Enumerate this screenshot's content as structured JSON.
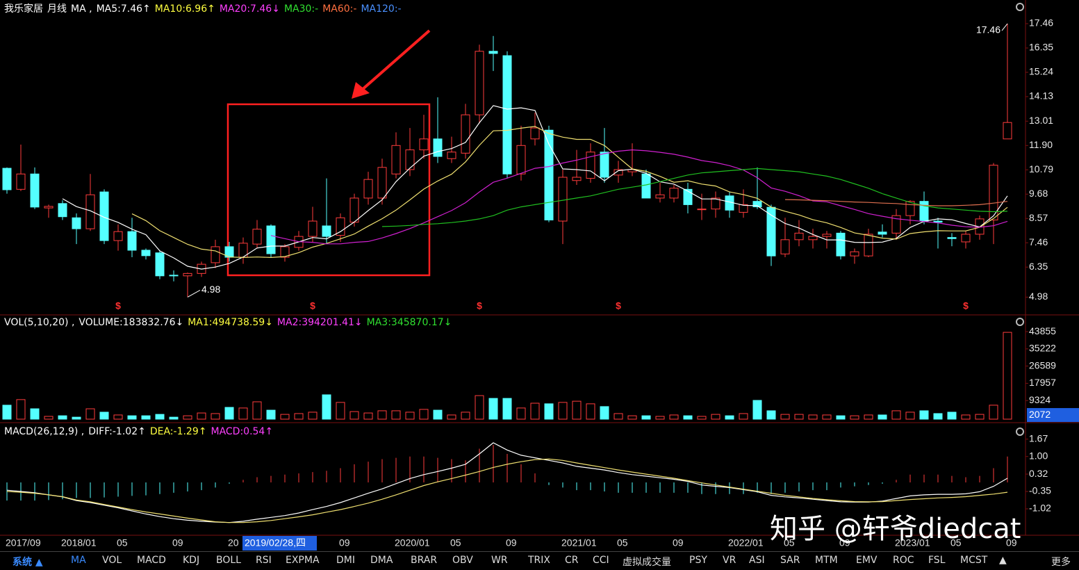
{
  "chart_data": [
    {
      "type": "candlestick",
      "title": "我乐家居",
      "period": "月线",
      "indicator": "MA ,",
      "legend": [
        {
          "text": "MA5:7.46↑",
          "color": "#ffffff"
        },
        {
          "text": "MA10:6.96↑",
          "color": "#ffff40"
        },
        {
          "text": "MA20:7.46↓",
          "color": "#ff40ff"
        },
        {
          "text": "MA30:-",
          "color": "#30e030"
        },
        {
          "text": "MA60:-",
          "color": "#ff7040"
        },
        {
          "text": "MA120:-",
          "color": "#4a90ff"
        }
      ],
      "open": [
        10.86,
        9.9,
        10.6,
        9.05,
        9.25,
        8.6,
        8.1,
        9.78,
        7.56,
        7.97,
        7.12,
        7.0,
        5.98,
        5.95,
        6.06,
        6.55,
        7.28,
        6.8,
        7.4,
        8.23,
        6.8,
        7.25,
        7.75,
        8.23,
        7.8,
        8.4,
        9.5,
        9.5,
        10.6,
        10.8,
        11.7,
        12.2,
        11.3,
        11.55,
        13.3,
        16.2,
        16.0,
        10.6,
        12.2,
        12.6,
        8.45,
        10.3,
        10.4,
        11.6,
        10.55,
        10.7,
        10.6,
        9.5,
        9.5,
        9.9,
        9.0,
        9.0,
        9.6,
        8.85,
        9.35,
        9.08,
        6.95,
        7.6,
        7.6,
        7.75,
        7.9,
        6.86,
        6.86,
        7.95,
        7.9,
        8.7,
        9.35,
        8.45,
        7.7,
        7.5,
        7.85,
        8.5,
        12.2
      ],
      "high": [
        10.9,
        11.94,
        10.9,
        9.2,
        9.4,
        8.8,
        10.6,
        9.9,
        8.3,
        8.6,
        7.2,
        7.1,
        6.2,
        6.1,
        6.6,
        7.6,
        7.5,
        7.7,
        8.5,
        8.3,
        7.4,
        8.0,
        9.1,
        10.4,
        8.8,
        9.7,
        10.7,
        11.3,
        12.5,
        12.7,
        13.3,
        14.1,
        12.3,
        13.8,
        16.5,
        16.9,
        16.2,
        12.8,
        13.4,
        12.8,
        10.8,
        11.7,
        12.0,
        12.7,
        11.2,
        12.0,
        10.8,
        10.2,
        10.1,
        10.2,
        9.7,
        9.8,
        9.8,
        9.9,
        10.9,
        9.2,
        8.6,
        8.5,
        8.1,
        8.0,
        8.0,
        7.2,
        8.1,
        8.3,
        9.0,
        9.4,
        9.8,
        8.6,
        7.9,
        8.0,
        8.7,
        11.1,
        17.46
      ],
      "low": [
        9.7,
        9.82,
        9.0,
        8.6,
        8.5,
        7.4,
        8.0,
        7.4,
        7.1,
        6.8,
        6.7,
        5.8,
        5.7,
        4.98,
        5.9,
        6.3,
        6.6,
        6.5,
        7.2,
        6.8,
        6.6,
        7.1,
        7.5,
        7.4,
        7.5,
        8.2,
        9.2,
        9.2,
        10.4,
        10.5,
        11.3,
        11.1,
        11.1,
        11.3,
        12.9,
        15.3,
        10.4,
        10.3,
        11.9,
        8.4,
        7.4,
        10.1,
        10.2,
        10.2,
        10.2,
        10.5,
        9.5,
        9.3,
        9.3,
        8.8,
        8.5,
        8.6,
        8.6,
        8.6,
        9.0,
        6.4,
        6.8,
        7.3,
        7.2,
        7.2,
        6.7,
        6.5,
        6.8,
        7.7,
        7.6,
        8.3,
        8.3,
        7.2,
        7.3,
        7.2,
        7.6,
        7.4,
        12.2
      ],
      "close": [
        9.88,
        10.6,
        9.09,
        9.12,
        8.65,
        8.1,
        9.65,
        7.56,
        7.97,
        7.12,
        6.87,
        5.95,
        5.96,
        6.06,
        6.48,
        7.28,
        6.8,
        7.44,
        8.08,
        6.96,
        7.28,
        7.75,
        8.45,
        7.75,
        8.6,
        9.5,
        10.35,
        10.9,
        11.9,
        11.7,
        12.2,
        11.4,
        11.6,
        13.3,
        16.2,
        16.1,
        10.6,
        11.9,
        12.7,
        8.5,
        10.45,
        10.45,
        11.6,
        10.45,
        10.8,
        10.8,
        9.5,
        9.65,
        9.95,
        9.2,
        9.0,
        9.5,
        8.95,
        9.2,
        9.1,
        6.86,
        7.6,
        7.9,
        7.75,
        7.85,
        6.86,
        7.05,
        7.85,
        7.85,
        8.7,
        9.35,
        8.45,
        8.4,
        7.65,
        7.85,
        8.55,
        11.0,
        12.95
      ],
      "series": [
        {
          "color": "#ffffff",
          "values": [
            null,
            null,
            null,
            null,
            9.47,
            9.11,
            8.92,
            8.62,
            8.39,
            8.08,
            7.83,
            7.09,
            6.77,
            6.39,
            6.26,
            6.35,
            6.52,
            6.81,
            7.22,
            7.31,
            7.31,
            7.5,
            7.7,
            7.64,
            7.97,
            8.41,
            8.93,
            9.42,
            10.25,
            10.87,
            11.41,
            11.62,
            11.76,
            12.04,
            12.94,
            13.72,
            13.56,
            13.62,
            13.5,
            11.96,
            10.83,
            10.8,
            10.74,
            10.29,
            10.75,
            10.82,
            10.63,
            10.24,
            10.14,
            9.82,
            9.46,
            9.46,
            9.32,
            9.17,
            9.15,
            8.72,
            8.34,
            8.13,
            7.84,
            7.59,
            7.59,
            7.48,
            7.47,
            7.49,
            7.66,
            8.16,
            8.44,
            8.55,
            8.51,
            8.34,
            8.18,
            8.69,
            9.6
          ]
        },
        {
          "color": "#f0e070",
          "values": [
            null,
            null,
            null,
            null,
            null,
            null,
            null,
            null,
            null,
            8.78,
            8.47,
            8.01,
            7.7,
            7.39,
            7.17,
            7.09,
            6.81,
            6.79,
            6.81,
            6.79,
            6.83,
            7.01,
            7.26,
            7.43,
            7.64,
            7.86,
            8.22,
            8.56,
            8.95,
            9.42,
            9.91,
            10.28,
            10.59,
            11.15,
            11.91,
            12.57,
            12.59,
            12.69,
            12.77,
            12.45,
            12.28,
            12.18,
            12.18,
            11.9,
            11.36,
            10.83,
            10.72,
            10.49,
            10.22,
            10.29,
            10.14,
            10.05,
            9.78,
            9.66,
            9.49,
            9.09,
            8.9,
            8.73,
            8.51,
            8.37,
            8.16,
            7.91,
            7.8,
            7.67,
            7.63,
            7.88,
            7.96,
            8.01,
            8.0,
            8.0,
            8.17,
            8.57,
            9.08
          ]
        },
        {
          "color": "#d020d0",
          "values": [
            null,
            null,
            null,
            null,
            null,
            null,
            null,
            null,
            null,
            null,
            null,
            null,
            null,
            null,
            null,
            null,
            null,
            null,
            null,
            7.79,
            7.65,
            7.51,
            7.48,
            7.41,
            7.41,
            7.48,
            7.52,
            7.68,
            7.88,
            8.11,
            8.37,
            8.65,
            8.93,
            9.29,
            9.78,
            10.22,
            10.41,
            10.63,
            10.86,
            10.94,
            11.1,
            11.23,
            11.39,
            11.53,
            11.64,
            11.7,
            11.66,
            11.59,
            11.5,
            11.37,
            11.21,
            11.12,
            10.98,
            10.78,
            10.43,
            9.96,
            9.81,
            9.61,
            9.37,
            9.33,
            9.15,
            8.98,
            8.79,
            8.67,
            8.56,
            8.49,
            8.43,
            8.37,
            8.26,
            8.19,
            8.17,
            8.24,
            8.44
          ]
        },
        {
          "color": "#20c020",
          "values": [
            null,
            null,
            null,
            null,
            null,
            null,
            null,
            null,
            null,
            null,
            null,
            null,
            null,
            null,
            null,
            null,
            null,
            null,
            null,
            null,
            null,
            null,
            null,
            null,
            null,
            null,
            null,
            8.2,
            8.22,
            8.25,
            8.3,
            8.33,
            8.38,
            8.45,
            8.55,
            8.7,
            8.95,
            9.1,
            9.2,
            9.3,
            9.4,
            9.5,
            9.6,
            9.75,
            9.9,
            10.0,
            10.1,
            10.25,
            10.4,
            10.55,
            10.65,
            10.7,
            10.75,
            10.8,
            10.85,
            10.8,
            10.75,
            10.7,
            10.6,
            10.5,
            10.35,
            10.15,
            9.95,
            9.7,
            9.5,
            9.3,
            9.15,
            9.05,
            9.0,
            8.95,
            8.9,
            8.88,
            8.9
          ]
        },
        {
          "color": "#e07050",
          "values": [
            null,
            null,
            null,
            null,
            null,
            null,
            null,
            null,
            null,
            null,
            null,
            null,
            null,
            null,
            null,
            null,
            null,
            null,
            null,
            null,
            null,
            null,
            null,
            null,
            null,
            null,
            null,
            null,
            null,
            null,
            null,
            null,
            null,
            null,
            null,
            null,
            null,
            null,
            null,
            null,
            null,
            null,
            null,
            null,
            null,
            null,
            null,
            null,
            null,
            null,
            null,
            null,
            null,
            null,
            null,
            null,
            9.43,
            9.42,
            9.4,
            9.38,
            9.35,
            9.32,
            9.3,
            9.27,
            9.25,
            9.2,
            9.17,
            9.15,
            9.15,
            9.17,
            9.2,
            9.27,
            9.35
          ]
        }
      ],
      "up_color": "#ff3c3c",
      "down_color": "#54ffff",
      "marker": "$",
      "ylim": [
        4.2,
        18.54
      ],
      "yticks": [
        17.46,
        16.35,
        15.24,
        14.13,
        13.01,
        {
          "value": 11.9,
          "label": "11.90"
        },
        10.79,
        9.68,
        8.57,
        7.46,
        6.35,
        4.98
      ]
    },
    {
      "type": "bar",
      "title": "VOL(5,10,20) ,",
      "legend": [
        {
          "text": "VOLUME:183832.76↓",
          "color": "#ffffff"
        },
        {
          "text": "MA1:494738.59↓",
          "color": "#ffff40"
        },
        {
          "text": "MA2:394201.41↓",
          "color": "#ff40ff"
        },
        {
          "text": "MA3:345870.17↓",
          "color": "#30e030"
        }
      ],
      "values": [
        7000,
        9800,
        5200,
        1400,
        1700,
        1000,
        5200,
        3500,
        2100,
        1700,
        1700,
        2400,
        1000,
        1700,
        3100,
        2800,
        5900,
        5600,
        8700,
        4500,
        2400,
        2800,
        3500,
        12200,
        8400,
        3800,
        3100,
        4200,
        4200,
        3500,
        4900,
        4500,
        2100,
        3500,
        11800,
        10400,
        10400,
        5600,
        8000,
        7700,
        8400,
        9000,
        7700,
        6300,
        2800,
        1700,
        1700,
        1400,
        2100,
        1700,
        1400,
        2400,
        1700,
        2800,
        9400,
        4200,
        2400,
        2400,
        2100,
        2100,
        1700,
        1700,
        2100,
        2100,
        4200,
        3500,
        4200,
        2800,
        3500,
        2100,
        2400,
        7000,
        43500
      ],
      "ylim": [
        0,
        49800
      ],
      "yticks": [
        43855,
        35222,
        26589,
        17957,
        9324
      ],
      "cursor_value": 2072
    },
    {
      "type": "macd",
      "title": "MACD(26,12,9) ,",
      "legend": [
        {
          "text": "DIFF:-1.02↑",
          "color": "#ffffff"
        },
        {
          "text": "DEA:-1.29↑",
          "color": "#ffff40"
        },
        {
          "text": "MACD:0.54↑",
          "color": "#ff40ff"
        }
      ],
      "series": [
        {
          "color": "#ffffff",
          "values": [
            -0.3,
            -0.35,
            -0.4,
            -0.48,
            -0.56,
            -0.7,
            -0.78,
            -0.88,
            -0.98,
            -1.1,
            -1.22,
            -1.32,
            -1.4,
            -1.46,
            -1.5,
            -1.53,
            -1.55,
            -1.5,
            -1.42,
            -1.35,
            -1.28,
            -1.18,
            -1.05,
            -0.93,
            -0.78,
            -0.6,
            -0.42,
            -0.25,
            -0.05,
            0.15,
            0.3,
            0.42,
            0.55,
            0.7,
            1.1,
            1.53,
            1.25,
            1.05,
            0.95,
            0.85,
            0.75,
            0.62,
            0.55,
            0.48,
            0.38,
            0.3,
            0.24,
            0.18,
            0.12,
            0.04,
            -0.1,
            -0.15,
            -0.2,
            -0.28,
            -0.36,
            -0.5,
            -0.56,
            -0.6,
            -0.65,
            -0.7,
            -0.75,
            -0.76,
            -0.76,
            -0.72,
            -0.62,
            -0.52,
            -0.48,
            -0.46,
            -0.46,
            -0.44,
            -0.36,
            -0.15,
            0.16
          ]
        },
        {
          "color": "#f0e070",
          "values": [
            -0.35,
            -0.38,
            -0.42,
            -0.48,
            -0.55,
            -0.68,
            -0.75,
            -0.85,
            -0.95,
            -1.05,
            -1.14,
            -1.22,
            -1.3,
            -1.38,
            -1.45,
            -1.52,
            -1.55,
            -1.55,
            -1.52,
            -1.47,
            -1.4,
            -1.33,
            -1.25,
            -1.15,
            -1.05,
            -0.93,
            -0.8,
            -0.65,
            -0.48,
            -0.3,
            -0.12,
            0.02,
            0.15,
            0.28,
            0.42,
            0.58,
            0.7,
            0.8,
            0.88,
            0.9,
            0.85,
            0.75,
            0.66,
            0.57,
            0.48,
            0.4,
            0.32,
            0.24,
            0.16,
            0.07,
            -0.02,
            -0.1,
            -0.18,
            -0.26,
            -0.34,
            -0.42,
            -0.5,
            -0.56,
            -0.62,
            -0.67,
            -0.71,
            -0.74,
            -0.75,
            -0.74,
            -0.7,
            -0.66,
            -0.63,
            -0.6,
            -0.58,
            -0.55,
            -0.5,
            -0.45,
            -0.38
          ]
        }
      ],
      "bars": [
        -0.7,
        -0.7,
        -0.7,
        -0.68,
        -0.65,
        -0.6,
        -0.6,
        -0.58,
        -0.55,
        -0.52,
        -0.5,
        -0.45,
        -0.4,
        -0.35,
        -0.3,
        -0.2,
        -0.05,
        0.1,
        0.2,
        0.25,
        0.3,
        0.35,
        0.4,
        0.45,
        0.55,
        0.7,
        0.8,
        0.9,
        0.95,
        1.0,
        1.0,
        0.95,
        0.9,
        0.85,
        1.3,
        1.45,
        1.1,
        0.7,
        0.35,
        -0.1,
        -0.2,
        -0.3,
        -0.3,
        -0.35,
        -0.4,
        -0.4,
        -0.4,
        -0.4,
        -0.4,
        -0.4,
        -0.45,
        -0.45,
        -0.45,
        -0.45,
        -0.4,
        -0.45,
        -0.4,
        -0.35,
        -0.3,
        -0.3,
        -0.2,
        -0.15,
        -0.1,
        -0.05,
        0.1,
        0.3,
        0.3,
        0.3,
        0.25,
        0.2,
        0.25,
        0.55,
        1.0
      ],
      "ylim": [
        -2.04,
        2.2
      ],
      "yticks": [
        1.67,
        {
          "value": 1,
          "label": "1.00"
        },
        0.32,
        -0.35,
        -1.02
      ]
    }
  ],
  "x_axis": {
    "labels": [
      "2017/09",
      null,
      null,
      null,
      "2018/01",
      null,
      null,
      null,
      "05",
      null,
      null,
      null,
      "09",
      null,
      null,
      null,
      "20",
      null,
      null,
      null,
      null,
      null,
      null,
      null,
      "09",
      null,
      null,
      null,
      "2020/01",
      null,
      null,
      null,
      "05",
      null,
      null,
      null,
      "09",
      null,
      null,
      null,
      "2021/01",
      null,
      null,
      null,
      "05",
      null,
      null,
      null,
      "09",
      null,
      null,
      null,
      "2022/01",
      null,
      null,
      null,
      "05",
      null,
      null,
      null,
      "09",
      null,
      null,
      null,
      "2023/01",
      null,
      null,
      null,
      "05",
      null,
      null,
      null,
      "09"
    ],
    "cursor_label": "2019/02/28,四"
  },
  "toolbar": {
    "items": [
      "系统 ▲",
      "MA",
      "VOL",
      "MACD",
      "KDJ",
      "BOLL",
      "RSI",
      "EXPMA",
      "DMI",
      "DMA",
      "BRAR",
      "OBV",
      "WR",
      "TRIX",
      "CR",
      "CCI",
      "虚拟成交量",
      "PSY",
      "VR",
      "ASI",
      "SAR",
      "MTM",
      "EMV",
      "ROC",
      "FSL",
      "MCST",
      "▲",
      "更多"
    ]
  },
  "watermark": "知乎 @轩爷diedcat"
}
